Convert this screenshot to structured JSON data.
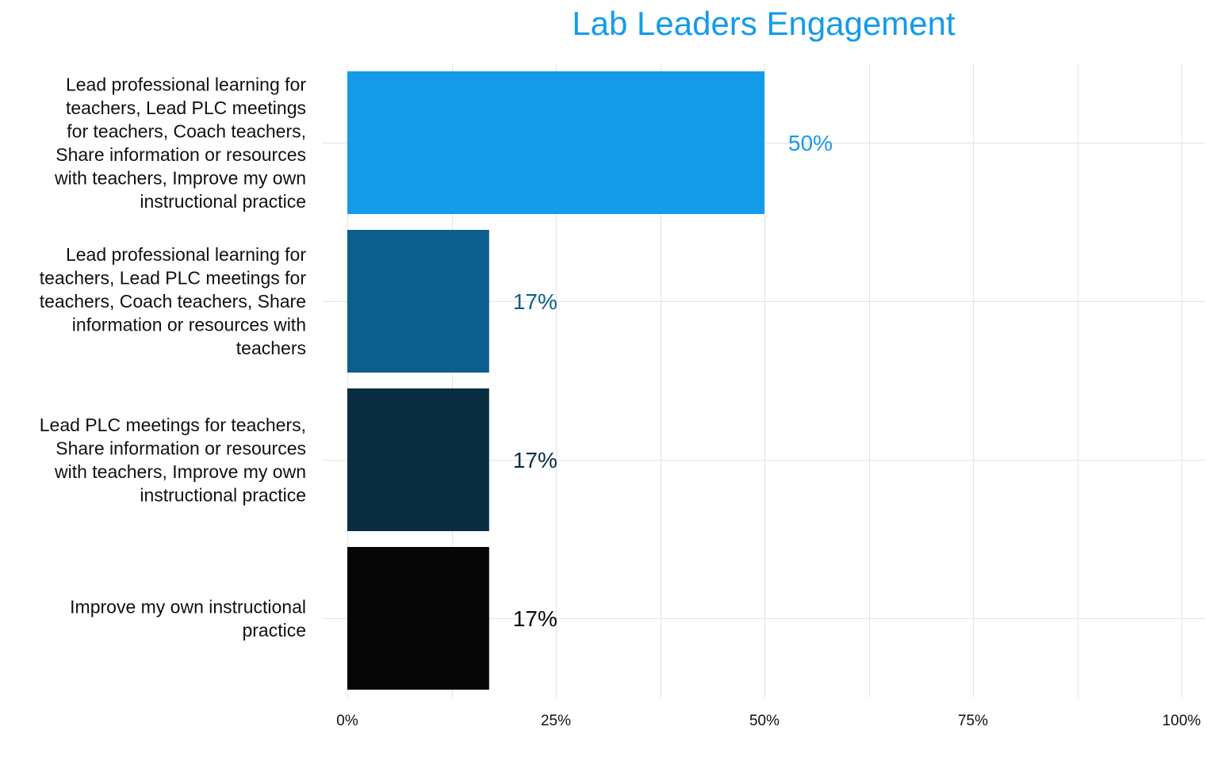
{
  "chart_data": {
    "type": "bar",
    "orientation": "horizontal",
    "title": "Lab Leaders Engagement",
    "title_color": "#149bea",
    "categories": [
      "Lead professional learning for teachers, Lead PLC meetings for teachers, Coach teachers, Share information or resources with teachers, Improve my own instructional practice",
      "Lead professional learning for teachers, Lead PLC meetings for teachers, Coach teachers, Share information or resources with teachers",
      "Lead PLC meetings for teachers, Share information or resources with teachers, Improve my own instructional practice",
      "Improve my own instructional practice"
    ],
    "category_label_lines": [
      [
        "Lead professional learning for",
        "teachers, Lead PLC meetings",
        "for teachers, Coach teachers,",
        "Share information or resources",
        "with teachers, Improve my own",
        "instructional practice"
      ],
      [
        "Lead professional learning for",
        "teachers, Lead PLC meetings for",
        "teachers, Coach teachers, Share",
        "information or resources with",
        "teachers"
      ],
      [
        "Lead PLC meetings for teachers,",
        "Share information or resources",
        "with teachers, Improve my own",
        "instructional practice"
      ],
      [
        "Improve my own instructional",
        "practice"
      ]
    ],
    "values": [
      50,
      17,
      17,
      17
    ],
    "value_labels": [
      "50%",
      "17%",
      "17%",
      "17%"
    ],
    "bar_colors": [
      "#149bea",
      "#0c5e8c",
      "#092e42",
      "#060606"
    ],
    "xlim": [
      0,
      100
    ],
    "xticks": [
      0,
      25,
      50,
      75,
      100
    ],
    "xtick_labels": [
      "0%",
      "25%",
      "50%",
      "75%",
      "100%"
    ],
    "minor_gridlines": [
      12.5,
      37.5,
      62.5,
      87.5
    ],
    "xlabel": "",
    "ylabel": "",
    "grid": true,
    "legend": "none"
  }
}
